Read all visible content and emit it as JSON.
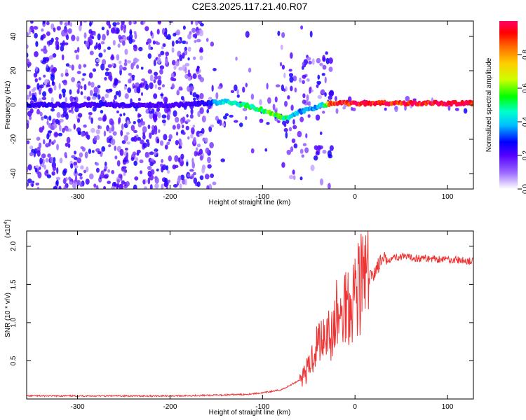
{
  "title": "C2E3.2025.117.21.40.R07",
  "chart_data": [
    {
      "type": "heatmap",
      "xlabel": "Height of straight line (km)",
      "ylabel": "Frequency (Hz)",
      "xlim": [
        -355,
        128
      ],
      "ylim": [
        -49,
        49
      ],
      "xticks": [
        -300,
        -200,
        -100,
        0,
        100
      ],
      "xtick_labels": [
        "-300",
        "-200",
        "-100",
        "0",
        "100"
      ],
      "yticks": [
        -40,
        -20,
        0,
        20,
        40
      ],
      "ytick_labels": [
        "-40",
        "-20",
        "0",
        "20",
        "40"
      ],
      "colorbar": {
        "label": "Normalized spectral amplitude",
        "range": [
          0,
          1
        ],
        "ticks": [
          0.0,
          0.2,
          0.4,
          0.6,
          0.8
        ],
        "tick_labels": [
          "0.0",
          "0.2",
          "0.4",
          "0.6",
          "0.8"
        ],
        "colors": [
          "#ffffff",
          "#9966ff",
          "#5500ff",
          "#0000ff",
          "#00bfff",
          "#00ffcc",
          "#00ff00",
          "#ccff00",
          "#ffcc00",
          "#ff6600",
          "#ff0000",
          "#ff0066"
        ]
      },
      "signal_track": {
        "x": [
          -355,
          -300,
          -250,
          -200,
          -160,
          -140,
          -120,
          -100,
          -85,
          -75,
          -60,
          -45,
          -35,
          -25,
          0,
          50,
          100,
          128
        ],
        "freq": [
          0,
          0,
          0,
          0,
          1,
          2,
          0,
          -3,
          -6,
          -8,
          -4,
          -2,
          0,
          1,
          1,
          1,
          1,
          1
        ],
        "amplitude": [
          0.25,
          0.22,
          0.22,
          0.2,
          0.25,
          0.45,
          0.5,
          0.55,
          0.6,
          0.5,
          0.35,
          0.35,
          0.4,
          0.9,
          1.0,
          1.0,
          1.0,
          1.0
        ]
      }
    },
    {
      "type": "line",
      "xlabel": "Height of straight line (km)",
      "ylabel": "SNR (10 * v/v)",
      "scale_label": "(x10",
      "scale_exponent": "4",
      "scale_suffix": ")",
      "xlim": [
        -355,
        128
      ],
      "ylim": [
        0,
        2.2
      ],
      "xticks": [
        -300,
        -200,
        -100,
        0,
        100
      ],
      "xtick_labels": [
        "-300",
        "-200",
        "-100",
        "0",
        "100"
      ],
      "yticks": [
        0.5,
        1.0,
        1.5,
        2.0
      ],
      "ytick_labels": [
        "0.5",
        "1.0",
        "1.5",
        "2.0"
      ],
      "color": "#ee3333",
      "series": [
        {
          "x": [
            -355,
            -300,
            -250,
            -200,
            -150,
            -120,
            -100,
            -80,
            -70,
            -60,
            -50,
            -45,
            -40,
            -35,
            -30,
            -25,
            -20,
            -15,
            -10,
            -5,
            0,
            5,
            10,
            15,
            20,
            25,
            30,
            40,
            50,
            60,
            80,
            100,
            110,
            128
          ],
          "values": [
            0.04,
            0.04,
            0.04,
            0.04,
            0.05,
            0.06,
            0.08,
            0.12,
            0.18,
            0.25,
            0.4,
            0.6,
            0.75,
            0.85,
            0.95,
            0.8,
            1.1,
            1.0,
            1.3,
            1.25,
            1.45,
            1.5,
            1.6,
            1.55,
            1.65,
            1.75,
            1.8,
            1.85,
            1.86,
            1.85,
            1.84,
            1.83,
            1.82,
            1.8
          ]
        }
      ]
    }
  ]
}
